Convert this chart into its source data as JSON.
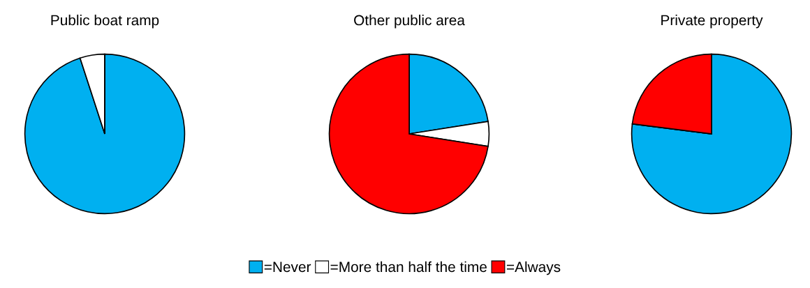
{
  "chart_data": [
    {
      "type": "pie",
      "title": "Public boat ramp",
      "categories": [
        "=Never",
        "=More than half the time",
        "=Always"
      ],
      "values": [
        95,
        5,
        0
      ],
      "colors": [
        "#00b0f0",
        "#ffffff",
        "#ff0000"
      ],
      "legend": "bottom"
    },
    {
      "type": "pie",
      "title": "Other public area",
      "categories": [
        null,
        null,
        null
      ],
      "values": [
        22.5,
        5,
        72.5
      ],
      "colors": [
        "#00b0f0",
        "#ffffff",
        "#ff0000"
      ]
    },
    {
      "type": "pie",
      "title": "Private property",
      "categories": [
        null,
        null,
        null
      ],
      "values": [
        77,
        0,
        23
      ],
      "colors": [
        "#00b0f0",
        "#ffffff",
        "#ff0000"
      ]
    }
  ]
}
